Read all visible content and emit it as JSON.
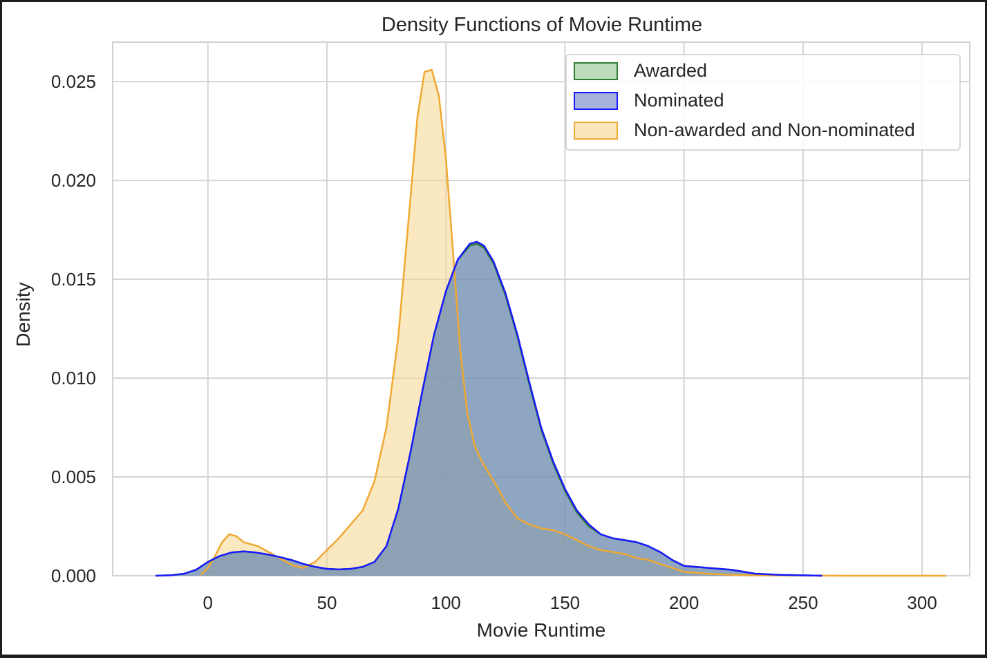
{
  "chart_data": {
    "type": "area",
    "title": "Density Functions of Movie Runtime",
    "xlabel": "Movie Runtime",
    "ylabel": "Density",
    "xlim": [
      -40,
      320
    ],
    "ylim": [
      0,
      0.027
    ],
    "xticks": [
      0,
      50,
      100,
      150,
      200,
      250,
      300
    ],
    "yticks": [
      0.0,
      0.005,
      0.01,
      0.015,
      0.02,
      0.025
    ],
    "ytick_labels": [
      "0.000",
      "0.005",
      "0.010",
      "0.015",
      "0.020",
      "0.025"
    ],
    "grid": true,
    "legend_position": "top-right",
    "series": [
      {
        "name": "Awarded",
        "color": "#2e7d32",
        "fill": "#8fc78f",
        "x": [
          -22,
          -15,
          -10,
          -5,
          0,
          5,
          10,
          15,
          20,
          25,
          30,
          35,
          40,
          45,
          50,
          55,
          60,
          65,
          70,
          75,
          80,
          85,
          90,
          95,
          100,
          105,
          110,
          113,
          116,
          120,
          125,
          130,
          135,
          140,
          145,
          150,
          155,
          160,
          165,
          170,
          175,
          180,
          185,
          190,
          195,
          200,
          210,
          220,
          230,
          240,
          250,
          258
        ],
        "y": [
          0.0,
          3e-05,
          0.0001,
          0.0003,
          0.0007,
          0.001,
          0.00118,
          0.00123,
          0.00118,
          0.00108,
          0.00095,
          0.0008,
          0.0006,
          0.00045,
          0.00035,
          0.00032,
          0.00035,
          0.00045,
          0.0007,
          0.0015,
          0.0034,
          0.0062,
          0.0093,
          0.0122,
          0.0144,
          0.016,
          0.0167,
          0.0168,
          0.0166,
          0.0158,
          0.0142,
          0.0121,
          0.0097,
          0.0074,
          0.0057,
          0.0043,
          0.0032,
          0.0025,
          0.0021,
          0.0019,
          0.0018,
          0.0017,
          0.0015,
          0.0012,
          0.0008,
          0.0005,
          0.0004,
          0.0003,
          0.0001,
          5e-05,
          2e-05,
          0.0
        ]
      },
      {
        "name": "Nominated",
        "color": "#1a1aff",
        "fill": "#6a7fc0",
        "x": [
          -22,
          -15,
          -10,
          -5,
          0,
          5,
          10,
          15,
          20,
          25,
          30,
          35,
          40,
          45,
          50,
          55,
          60,
          65,
          70,
          75,
          80,
          85,
          90,
          95,
          100,
          105,
          110,
          113,
          116,
          120,
          125,
          130,
          135,
          140,
          145,
          150,
          155,
          160,
          165,
          170,
          175,
          180,
          185,
          190,
          195,
          200,
          210,
          220,
          230,
          240,
          250,
          258
        ],
        "y": [
          0.0,
          3e-05,
          0.0001,
          0.0003,
          0.0007,
          0.001,
          0.00118,
          0.00123,
          0.00118,
          0.00108,
          0.00095,
          0.0008,
          0.0006,
          0.00045,
          0.00035,
          0.00032,
          0.00035,
          0.00045,
          0.0007,
          0.0015,
          0.0034,
          0.0062,
          0.0093,
          0.0122,
          0.0144,
          0.016,
          0.0168,
          0.0169,
          0.0167,
          0.0159,
          0.0143,
          0.0122,
          0.0098,
          0.0075,
          0.0058,
          0.0044,
          0.0033,
          0.0026,
          0.0021,
          0.0019,
          0.0018,
          0.0017,
          0.0015,
          0.0012,
          0.0008,
          0.0005,
          0.0004,
          0.0003,
          0.0001,
          5e-05,
          2e-05,
          0.0
        ]
      },
      {
        "name": "Non-awarded and Non-nominated",
        "color": "#f0a830",
        "fill": "#f6d58e",
        "x": [
          -3,
          0,
          3,
          6,
          9,
          12,
          15,
          18,
          21,
          24,
          27,
          30,
          33,
          36,
          40,
          45,
          50,
          55,
          60,
          65,
          70,
          75,
          80,
          85,
          88,
          91,
          94,
          97,
          100,
          103,
          106,
          109,
          112,
          115,
          118,
          121,
          125,
          130,
          135,
          140,
          145,
          150,
          155,
          160,
          165,
          170,
          175,
          180,
          185,
          190,
          195,
          200,
          210,
          220,
          230,
          250,
          270,
          290,
          310
        ],
        "y": [
          5e-05,
          0.0004,
          0.001,
          0.0017,
          0.0021,
          0.002,
          0.0017,
          0.0016,
          0.0015,
          0.0013,
          0.0011,
          0.0009,
          0.0007,
          0.0005,
          0.0004,
          0.0007,
          0.0013,
          0.0019,
          0.0026,
          0.0033,
          0.0048,
          0.0075,
          0.0121,
          0.019,
          0.0232,
          0.0255,
          0.0256,
          0.0243,
          0.0211,
          0.0163,
          0.0114,
          0.0082,
          0.0066,
          0.0058,
          0.0052,
          0.0046,
          0.0037,
          0.0029,
          0.0026,
          0.0024,
          0.0023,
          0.0021,
          0.0018,
          0.0015,
          0.0013,
          0.0012,
          0.0011,
          0.0009,
          0.0008,
          0.0006,
          0.0004,
          0.0002,
          0.0001,
          5e-05,
          2e-05,
          1e-05,
          0.0,
          0.0,
          0.0
        ]
      }
    ]
  }
}
